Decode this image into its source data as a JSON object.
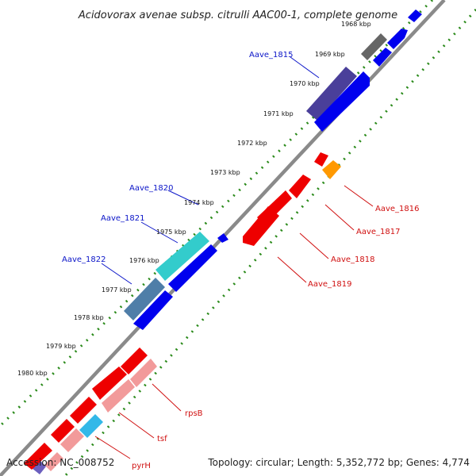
{
  "title": "Acidovorax avenae subsp. citrulli AAC00-1, complete genome",
  "accession": "Accession: NC_008752",
  "topology": "Topology: circular; Length: 5,352,772 bp; Genes: 4,774",
  "ticks": [
    "1968 kbp",
    "1969 kbp",
    "1970 kbp",
    "1971 kbp",
    "1972 kbp",
    "1973 kbp",
    "1974 kbp",
    "1975 kbp",
    "1976 kbp",
    "1977 kbp",
    "1978 kbp",
    "1979 kbp",
    "1980 kbp"
  ],
  "forward_gene_labels": [
    "Aave_1815",
    "Aave_1820",
    "Aave_1821",
    "Aave_1822"
  ],
  "reverse_gene_labels": [
    "Aave_1816",
    "Aave_1817",
    "Aave_1818",
    "Aave_1819",
    "rpsB",
    "tsf",
    "pyrH"
  ],
  "colors": {
    "forward_cds": "#0000ee",
    "reverse_cds": "#ee0000",
    "reverse_light": "#f29a9a",
    "orange": "#ff9900",
    "cyan": "#33cccc",
    "steel": "#4f7ea8",
    "slate": "#4a3f9a",
    "gray": "#666666",
    "backbone": "#888888",
    "gc_dots": "#2a8a1a"
  }
}
